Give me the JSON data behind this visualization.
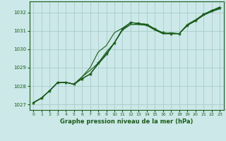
{
  "title": "Graphe pression niveau de la mer (hPa)",
  "bg_color": "#cce8e8",
  "grid_color": "#aacccc",
  "line_color": "#1a5c1a",
  "marker_color": "#1a5c1a",
  "xlim": [
    -0.5,
    23.5
  ],
  "ylim": [
    1026.7,
    1032.6
  ],
  "yticks": [
    1027,
    1028,
    1029,
    1030,
    1031,
    1032
  ],
  "xticks": [
    0,
    1,
    2,
    3,
    4,
    5,
    6,
    7,
    8,
    9,
    10,
    11,
    12,
    13,
    14,
    15,
    16,
    17,
    18,
    19,
    20,
    21,
    22,
    23
  ],
  "series1": [
    1027.1,
    1027.35,
    1027.75,
    1028.2,
    1028.2,
    1028.1,
    1028.5,
    1028.85,
    1029.25,
    1029.85,
    1030.35,
    1031.1,
    1031.45,
    1031.4,
    1031.35,
    1031.1,
    1030.85,
    1030.9,
    1030.85,
    1031.35,
    1031.6,
    1031.9,
    1032.1,
    1032.3
  ],
  "series2": [
    1027.1,
    1027.35,
    1027.75,
    1028.2,
    1028.2,
    1028.1,
    1028.4,
    1028.65,
    1029.2,
    1029.7,
    1030.35,
    1031.05,
    1031.35,
    1031.35,
    1031.3,
    1031.05,
    1030.85,
    1030.85,
    1030.85,
    1031.3,
    1031.55,
    1031.85,
    1032.1,
    1032.25
  ],
  "series3": [
    1027.1,
    1027.35,
    1027.75,
    1028.2,
    1028.2,
    1028.1,
    1028.4,
    1028.65,
    1029.2,
    1029.7,
    1030.35,
    1031.05,
    1031.35,
    1031.35,
    1031.3,
    1031.05,
    1030.85,
    1030.85,
    1030.85,
    1031.3,
    1031.55,
    1031.85,
    1032.05,
    1032.2
  ],
  "series4": [
    1027.1,
    1027.35,
    1027.75,
    1028.2,
    1028.2,
    1028.1,
    1028.5,
    1029.0,
    1029.85,
    1030.2,
    1030.9,
    1031.15,
    1031.45,
    1031.4,
    1031.35,
    1031.1,
    1030.85,
    1030.85,
    1030.85,
    1031.3,
    1031.55,
    1031.85,
    1032.05,
    1032.2
  ],
  "main_series": [
    1027.1,
    1027.35,
    1027.75,
    1028.2,
    1028.2,
    1028.1,
    1028.4,
    1028.65,
    1029.25,
    1029.75,
    1030.35,
    1031.1,
    1031.45,
    1031.4,
    1031.35,
    1031.1,
    1030.9,
    1030.85,
    1030.85,
    1031.3,
    1031.55,
    1031.9,
    1032.1,
    1032.25
  ]
}
